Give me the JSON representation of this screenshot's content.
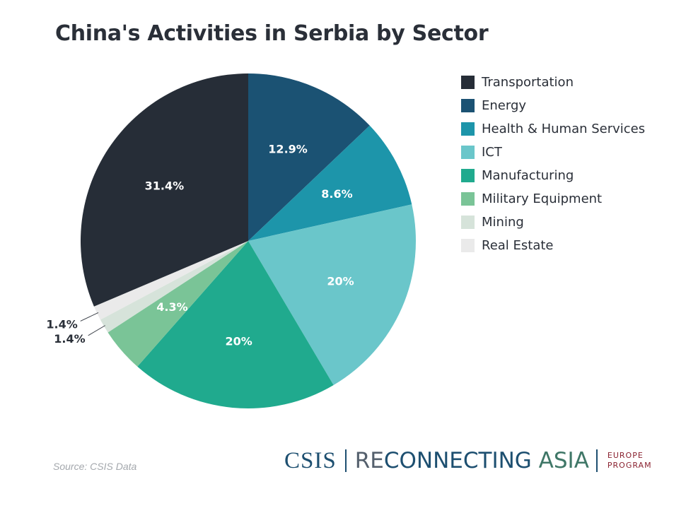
{
  "title": "China's Activities in Serbia by Sector",
  "chart_data": {
    "type": "pie",
    "title": "China's Activities in Serbia by Sector",
    "legend_position": "right",
    "slices": [
      {
        "label": "Energy",
        "value": 12.9,
        "display": "12.9%",
        "color": "#1b5273"
      },
      {
        "label": "Health & Human Services",
        "value": 8.6,
        "display": "8.6%",
        "color": "#1d95aa"
      },
      {
        "label": "ICT",
        "value": 20,
        "display": "20%",
        "color": "#6ac6ca"
      },
      {
        "label": "Manufacturing",
        "value": 20,
        "display": "20%",
        "color": "#20aa8e"
      },
      {
        "label": "Military Equipment",
        "value": 4.3,
        "display": "4.3%",
        "color": "#7ac497"
      },
      {
        "label": "Mining",
        "value": 1.4,
        "display": "1.4%",
        "color": "#d6e3da"
      },
      {
        "label": "Real Estate",
        "value": 1.4,
        "display": "1.4%",
        "color": "#eaeaea"
      },
      {
        "label": "Transportation",
        "value": 31.4,
        "display": "31.4%",
        "color": "#262d37"
      }
    ]
  },
  "legend": [
    {
      "label": "Transportation",
      "color": "#262d37"
    },
    {
      "label": "Energy",
      "color": "#1b5273"
    },
    {
      "label": "Health & Human Services",
      "color": "#1d95aa"
    },
    {
      "label": "ICT",
      "color": "#6ac6ca"
    },
    {
      "label": "Manufacturing",
      "color": "#20aa8e"
    },
    {
      "label": "Military Equipment",
      "color": "#7ac497"
    },
    {
      "label": "Mining",
      "color": "#d6e3da"
    },
    {
      "label": "Real Estate",
      "color": "#eaeaea"
    }
  ],
  "source": "Source: CSIS Data",
  "branding": {
    "csis": "CSIS",
    "program_re": "RE",
    "program_connecting": "CONNECTING",
    "program_asia": "ASIA",
    "europe_line1": "EUROPE",
    "europe_line2": "PROGRAM"
  }
}
